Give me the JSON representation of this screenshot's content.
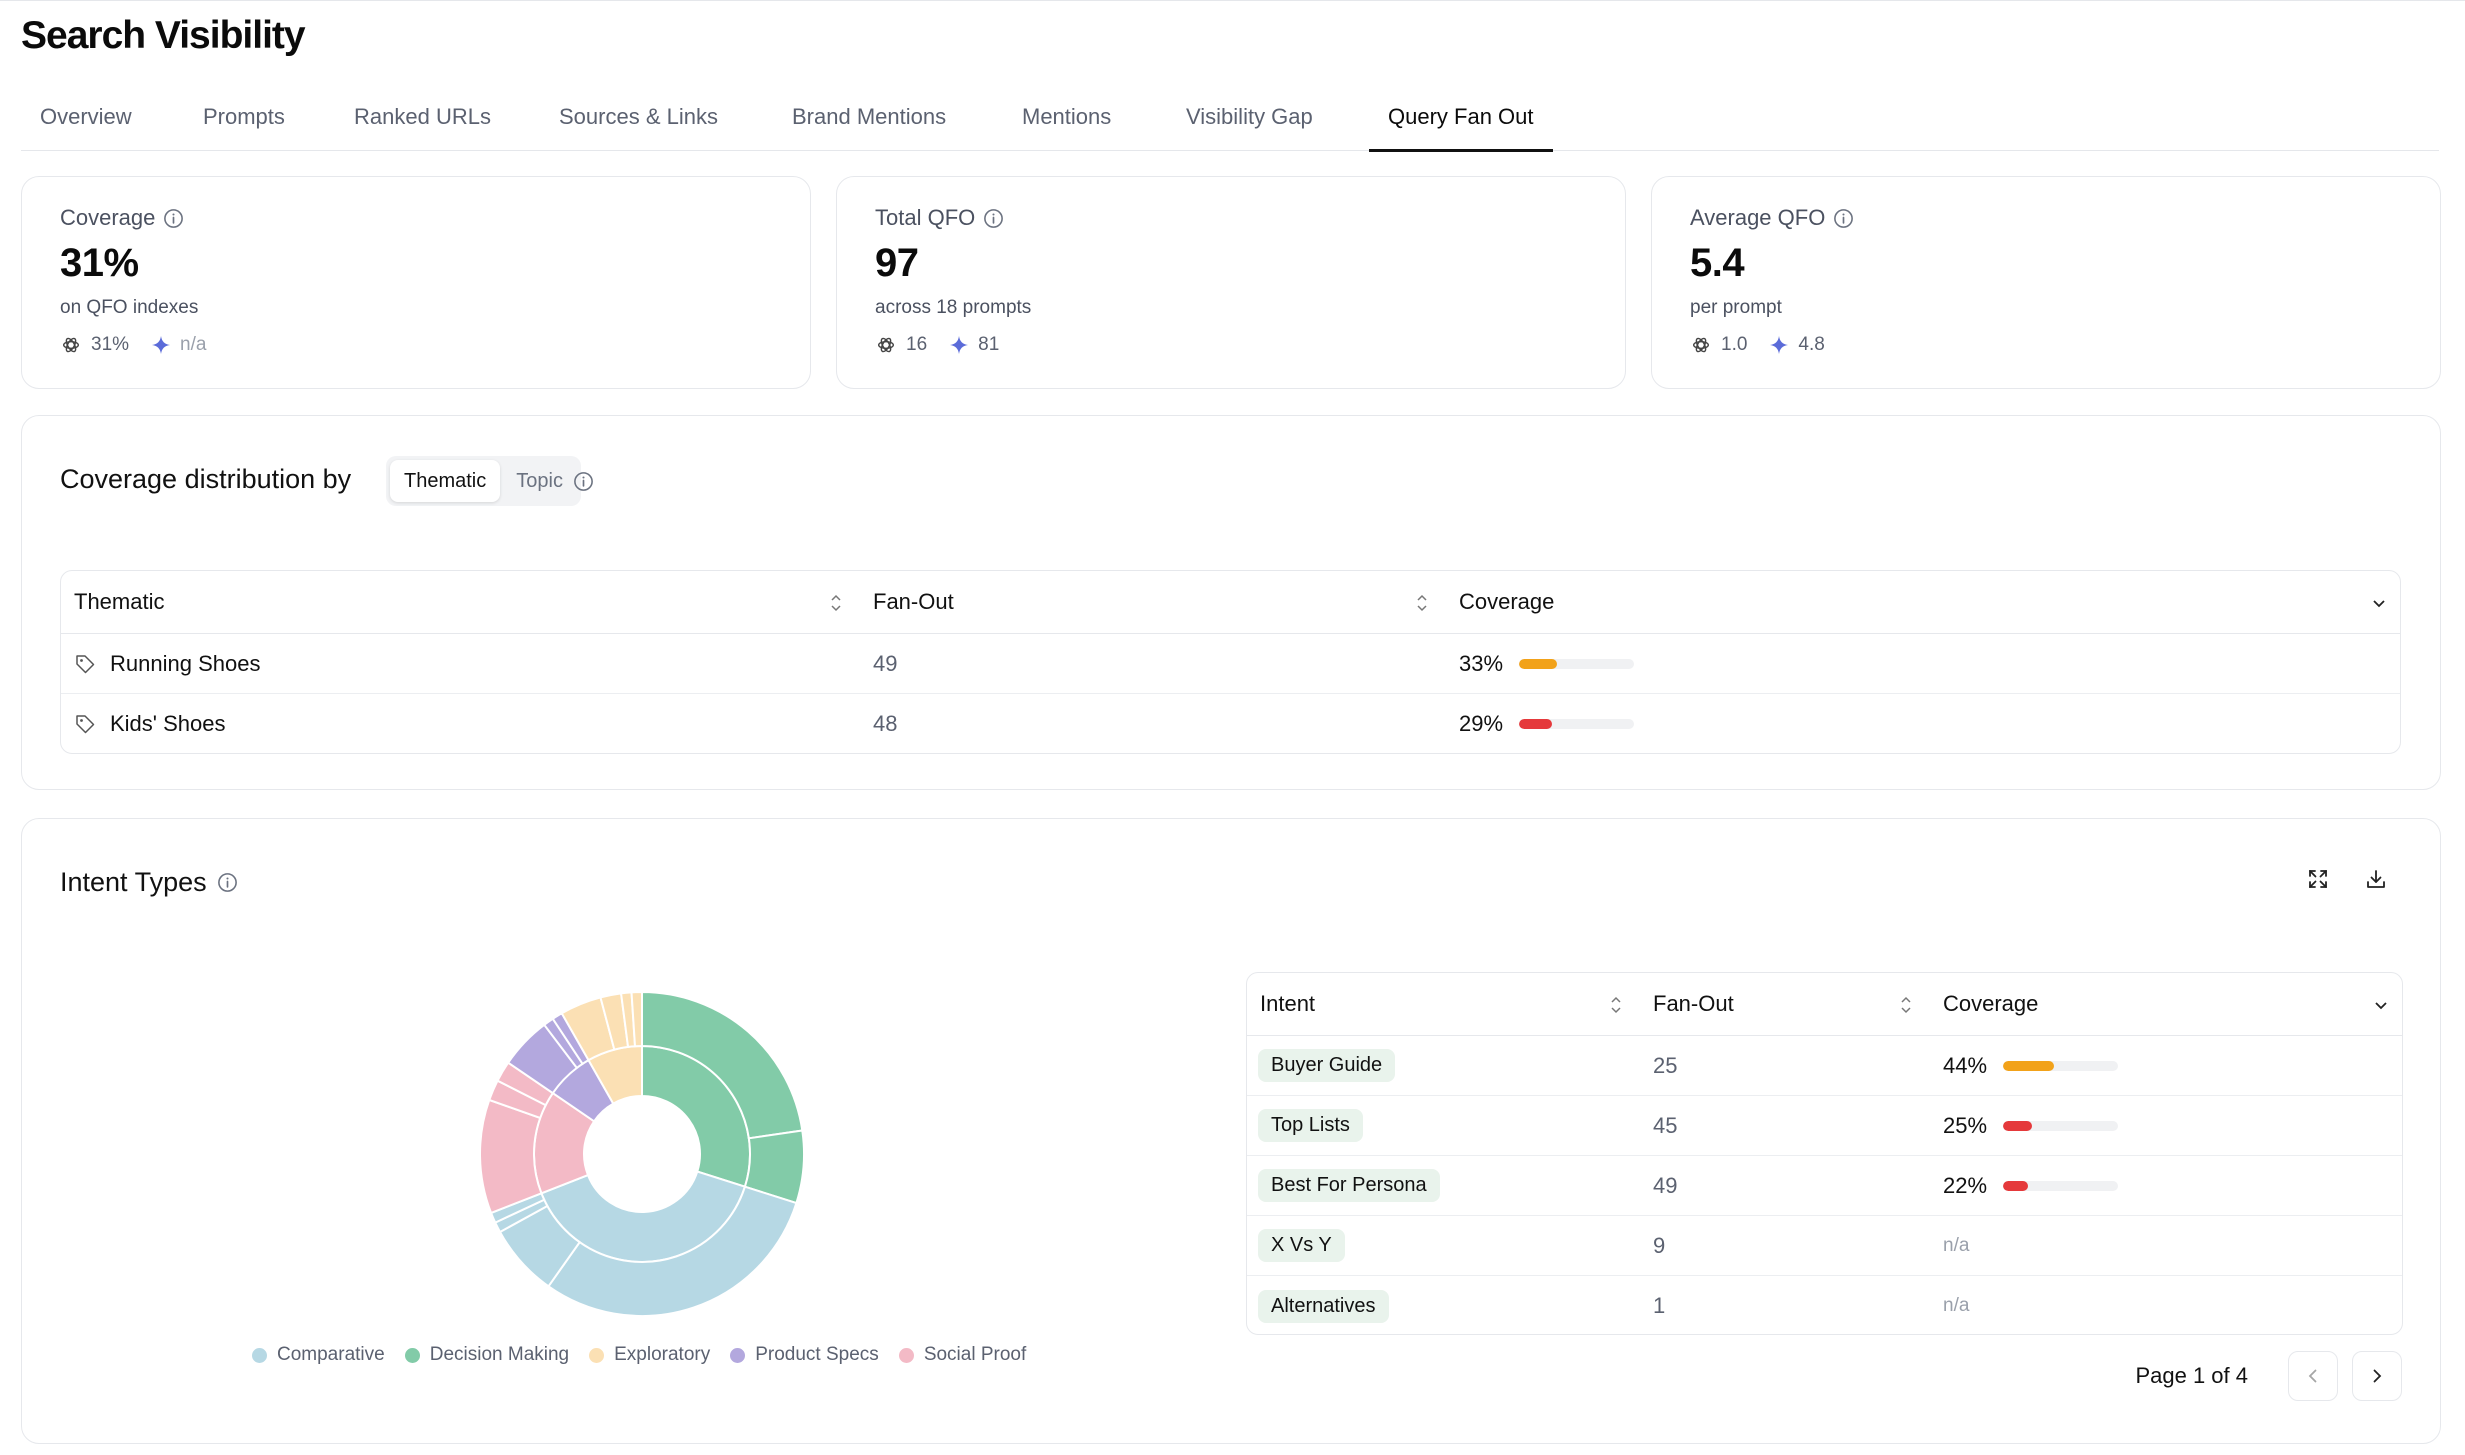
{
  "page": {
    "title": "Search Visibility"
  },
  "tabs": [
    {
      "label": "Overview"
    },
    {
      "label": "Prompts"
    },
    {
      "label": "Ranked URLs"
    },
    {
      "label": "Sources & Links"
    },
    {
      "label": "Brand Mentions"
    },
    {
      "label": "Mentions"
    },
    {
      "label": "Visibility Gap"
    },
    {
      "label": "Query Fan Out",
      "active": true
    }
  ],
  "stats": [
    {
      "label": "Coverage",
      "value": "31%",
      "sub": "on QFO indexes",
      "gpt_value": "31%",
      "gemini_value": "n/a",
      "icons": [
        "chatgpt-icon",
        "gemini-sparkle-icon"
      ]
    },
    {
      "label": "Total QFO",
      "value": "97",
      "sub": "across 18 prompts",
      "gpt_value": "16",
      "gemini_value": "81",
      "icons": [
        "chatgpt-icon",
        "gemini-sparkle-icon"
      ]
    },
    {
      "label": "Average QFO",
      "value": "5.4",
      "sub": "per prompt",
      "gpt_value": "1.0",
      "gemini_value": "4.8",
      "icons": [
        "chatgpt-icon",
        "gemini-sparkle-icon"
      ]
    }
  ],
  "distribution": {
    "title": "Coverage distribution by",
    "toggle": [
      "Thematic",
      "Topic"
    ],
    "selected": "Thematic",
    "columns": [
      "Thematic",
      "Fan-Out",
      "Coverage"
    ],
    "rows": [
      {
        "name": "Running Shoes",
        "fanout": "49",
        "coverage": "33%",
        "coverage_value": 0.33,
        "color": "#f2a21a"
      },
      {
        "name": "Kids' Shoes",
        "fanout": "48",
        "coverage": "29%",
        "coverage_value": 0.29,
        "color": "#e5393b"
      }
    ]
  },
  "intent": {
    "title": "Intent Types",
    "columns": [
      "Intent",
      "Fan-Out",
      "Coverage"
    ],
    "rows": [
      {
        "name": "Buyer Guide",
        "fanout": "25",
        "coverage": "44%",
        "coverage_value": 0.44,
        "color": "#f2a21a"
      },
      {
        "name": "Top Lists",
        "fanout": "45",
        "coverage": "25%",
        "coverage_value": 0.25,
        "color": "#e5393b"
      },
      {
        "name": "Best For Persona",
        "fanout": "49",
        "coverage": "22%",
        "coverage_value": 0.22,
        "color": "#e5393b"
      },
      {
        "name": "X Vs Y",
        "fanout": "9",
        "coverage": "n/a"
      },
      {
        "name": "Alternatives",
        "fanout": "1",
        "coverage": "n/a"
      }
    ],
    "pager": {
      "text": "Page 1 of 4"
    },
    "legend": [
      {
        "name": "Comparative",
        "color": "#b6d8e4"
      },
      {
        "name": "Decision Making",
        "color": "#82cba8"
      },
      {
        "name": "Exploratory",
        "color": "#fbe0b4"
      },
      {
        "name": "Product Specs",
        "color": "#b3a8de"
      },
      {
        "name": "Social Proof",
        "color": "#f3bac6"
      }
    ]
  },
  "chart_data": {
    "type": "pie",
    "subtype": "sunburst",
    "inner": [
      {
        "name": "Decision Making",
        "value": 29,
        "color": "#82cba8"
      },
      {
        "name": "Comparative",
        "value": 38,
        "color": "#b6d8e4"
      },
      {
        "name": "Social Proof",
        "value": 15,
        "color": "#f3bac6"
      },
      {
        "name": "Product Specs",
        "value": 7,
        "color": "#b3a8de"
      },
      {
        "name": "Exploratory",
        "value": 8,
        "color": "#fbe0b4"
      }
    ],
    "outer": [
      {
        "parent": "Decision Making",
        "value": 22,
        "color": "#82cba8"
      },
      {
        "parent": "Decision Making",
        "value": 7,
        "color": "#82cba8"
      },
      {
        "parent": "Comparative",
        "value": 29,
        "color": "#b6d8e4"
      },
      {
        "parent": "Comparative",
        "value": 7,
        "color": "#b6d8e4"
      },
      {
        "parent": "Comparative",
        "value": 1,
        "color": "#b6d8e4"
      },
      {
        "parent": "Comparative",
        "value": 1,
        "color": "#b6d8e4"
      },
      {
        "parent": "Social Proof",
        "value": 11,
        "color": "#f3bac6"
      },
      {
        "parent": "Social Proof",
        "value": 2,
        "color": "#f3bac6"
      },
      {
        "parent": "Social Proof",
        "value": 2,
        "color": "#f3bac6"
      },
      {
        "parent": "Product Specs",
        "value": 5,
        "color": "#b3a8de"
      },
      {
        "parent": "Product Specs",
        "value": 1,
        "color": "#b3a8de"
      },
      {
        "parent": "Product Specs",
        "value": 1,
        "color": "#b3a8de"
      },
      {
        "parent": "Exploratory",
        "value": 4,
        "color": "#fbe0b4"
      },
      {
        "parent": "Exploratory",
        "value": 2,
        "color": "#fbe0b4"
      },
      {
        "parent": "Exploratory",
        "value": 1,
        "color": "#fbe0b4"
      },
      {
        "parent": "Exploratory",
        "value": 1,
        "color": "#fbe0b4"
      }
    ]
  }
}
